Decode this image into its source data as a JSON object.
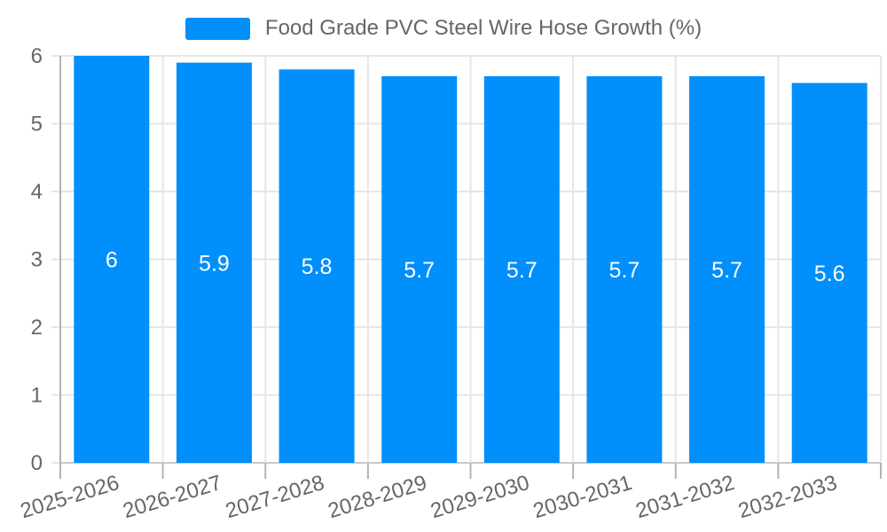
{
  "legend": {
    "label": "Food Grade PVC Steel Wire Hose Growth (%)"
  },
  "colors": {
    "bar": "#008FFB",
    "axis_text": "#666666",
    "grid": "#E6E6E6",
    "axis_line": "#B3B3B3",
    "x_axis_line": "#C9C9C9",
    "value_label": "#FFFFFF",
    "background": "#FFFFFF"
  },
  "chart_data": {
    "type": "bar",
    "title": "Food Grade PVC Steel Wire Hose Growth (%)",
    "categories": [
      "2025-2026",
      "2026-2027",
      "2027-2028",
      "2028-2029",
      "2029-2030",
      "2030-2031",
      "2031-2032",
      "2032-2033"
    ],
    "values": [
      6,
      5.9,
      5.8,
      5.7,
      5.7,
      5.7,
      5.7,
      5.6
    ],
    "value_labels": [
      "6",
      "5.9",
      "5.8",
      "5.7",
      "5.7",
      "5.7",
      "5.7",
      "5.6"
    ],
    "series": [
      {
        "name": "Food Grade PVC Steel Wire Hose Growth (%)",
        "values": [
          6,
          5.9,
          5.8,
          5.7,
          5.7,
          5.7,
          5.7,
          5.6
        ]
      }
    ],
    "xlabel": "",
    "ylabel": "",
    "ylim": [
      0,
      6
    ],
    "yticks": [
      0,
      1,
      2,
      3,
      4,
      5,
      6
    ],
    "grid": true,
    "legend_position": "top",
    "bar_label_position": "middle",
    "x_label_rotation_deg": -17
  }
}
